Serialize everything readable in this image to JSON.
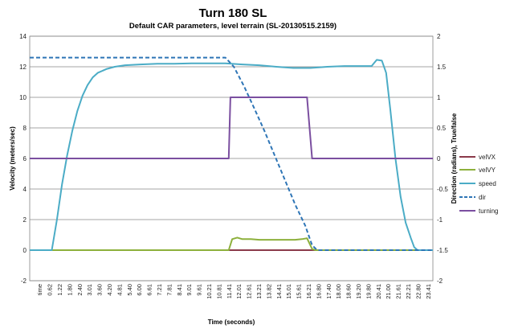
{
  "chart_data": {
    "type": "line",
    "title": "Turn 180 SL",
    "subtitle": "Default CAR parameters, level terrain (SL-20130515.2159)",
    "xlabel": "Time (seconds)",
    "ylabel_left": "Velocity (meters/sec)",
    "ylabel_right": "Direction (radians), True/false",
    "ylim_left": [
      -2,
      14
    ],
    "ylim_right": [
      -2,
      2
    ],
    "yticks_left": [
      -2,
      0,
      2,
      4,
      6,
      8,
      10,
      12,
      14
    ],
    "yticks_right": [
      -2,
      -1.5,
      -1,
      -0.5,
      0,
      0.5,
      1,
      1.5,
      2
    ],
    "ytick_labels_right": [
      "-2",
      "-1.5",
      "-1",
      "-0.5",
      "0",
      "0.5",
      "1",
      "1.5",
      "2"
    ],
    "grid": true,
    "legend_position": "right",
    "x_tick_labels": [
      "time",
      "0.62",
      "1.22",
      "1.80",
      "2.40",
      "3.01",
      "3.60",
      "4.20",
      "4.81",
      "5.40",
      "6.00",
      "6.61",
      "7.21",
      "7.81",
      "8.41",
      "9.01",
      "9.61",
      "10.21",
      "10.81",
      "11.41",
      "12.01",
      "12.61",
      "13.21",
      "13.82",
      "14.41",
      "15.01",
      "15.61",
      "16.21",
      "16.80",
      "17.40",
      "18.00",
      "18.60",
      "19.20",
      "19.80",
      "20.41",
      "21.00",
      "21.61",
      "22.21",
      "22.80",
      "23.41"
    ],
    "series": [
      {
        "name": "velVX",
        "axis": "left",
        "color": "#8B3A4A",
        "dash": false,
        "points": [
          [
            0,
            0
          ],
          [
            23.7,
            0
          ]
        ]
      },
      {
        "name": "velVY",
        "axis": "left",
        "color": "#8DB03C",
        "dash": false,
        "points": [
          [
            0,
            0
          ],
          [
            11.7,
            0
          ],
          [
            11.9,
            0.72
          ],
          [
            12.2,
            0.82
          ],
          [
            12.5,
            0.72
          ],
          [
            13.0,
            0.72
          ],
          [
            13.5,
            0.68
          ],
          [
            14.0,
            0.68
          ],
          [
            14.5,
            0.68
          ],
          [
            15.0,
            0.68
          ],
          [
            15.6,
            0.68
          ],
          [
            16.0,
            0.72
          ],
          [
            16.3,
            0.78
          ],
          [
            16.6,
            0.08
          ],
          [
            16.8,
            0
          ],
          [
            23.7,
            0
          ]
        ]
      },
      {
        "name": "speed",
        "axis": "left",
        "color": "#4BACC6",
        "dash": false,
        "points": [
          [
            0,
            0
          ],
          [
            1.3,
            0
          ],
          [
            1.6,
            2.0
          ],
          [
            1.9,
            4.3
          ],
          [
            2.2,
            6.2
          ],
          [
            2.5,
            7.8
          ],
          [
            2.8,
            9.1
          ],
          [
            3.1,
            10.1
          ],
          [
            3.4,
            10.8
          ],
          [
            3.7,
            11.3
          ],
          [
            4.0,
            11.6
          ],
          [
            4.5,
            11.85
          ],
          [
            5.0,
            12.0
          ],
          [
            5.6,
            12.1
          ],
          [
            6.5,
            12.15
          ],
          [
            7.5,
            12.2
          ],
          [
            8.5,
            12.2
          ],
          [
            9.5,
            12.22
          ],
          [
            10.5,
            12.22
          ],
          [
            11.5,
            12.22
          ],
          [
            12.5,
            12.15
          ],
          [
            13.5,
            12.1
          ],
          [
            14.5,
            12.0
          ],
          [
            15.5,
            11.92
          ],
          [
            16.5,
            11.92
          ],
          [
            17.5,
            12.0
          ],
          [
            18.5,
            12.05
          ],
          [
            19.5,
            12.05
          ],
          [
            20.1,
            12.05
          ],
          [
            20.4,
            12.45
          ],
          [
            20.7,
            12.4
          ],
          [
            20.95,
            11.6
          ],
          [
            21.2,
            9.2
          ],
          [
            21.5,
            6.0
          ],
          [
            21.8,
            3.5
          ],
          [
            22.1,
            1.8
          ],
          [
            22.4,
            0.8
          ],
          [
            22.6,
            0.2
          ],
          [
            22.8,
            0
          ],
          [
            23.7,
            0
          ]
        ]
      },
      {
        "name": "dir",
        "axis": "right",
        "color": "#2E75B6",
        "dash": true,
        "points": [
          [
            0,
            1.65
          ],
          [
            11.5,
            1.65
          ],
          [
            12.0,
            1.5
          ],
          [
            12.6,
            1.18
          ],
          [
            13.2,
            0.82
          ],
          [
            13.8,
            0.45
          ],
          [
            14.4,
            0.05
          ],
          [
            15.0,
            -0.35
          ],
          [
            15.6,
            -0.75
          ],
          [
            16.2,
            -1.1
          ],
          [
            16.6,
            -1.42
          ],
          [
            16.9,
            -1.5
          ],
          [
            23.7,
            -1.5
          ]
        ]
      },
      {
        "name": "turning",
        "axis": "right",
        "color": "#7B4FA0",
        "dash": false,
        "points": [
          [
            0,
            0
          ],
          [
            11.7,
            0
          ],
          [
            11.8,
            1
          ],
          [
            16.3,
            1
          ],
          [
            16.6,
            0
          ],
          [
            23.7,
            0
          ]
        ]
      }
    ]
  }
}
